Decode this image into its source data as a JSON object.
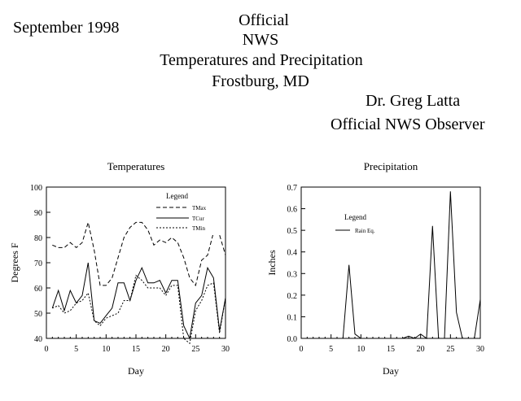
{
  "header": {
    "date": "September 1998",
    "line1": "Official",
    "line2": "NWS",
    "line3": "Temperatures and Precipitation",
    "line4": "Frostburg, MD",
    "observer_name": "Dr. Greg Latta",
    "observer_title": "Official NWS Observer"
  },
  "chart_data": [
    {
      "type": "line",
      "title": "Temperatures",
      "xlabel": "Day",
      "ylabel": "Degrees F",
      "xlim": [
        0,
        30
      ],
      "ylim": [
        40,
        100
      ],
      "xticks": [
        0,
        5,
        10,
        15,
        20,
        25,
        30
      ],
      "yticks": [
        40,
        50,
        60,
        70,
        80,
        90,
        100
      ],
      "legend_title": "Legend",
      "legend_position": "top-right",
      "grid": false,
      "x": [
        1,
        2,
        3,
        4,
        5,
        6,
        7,
        8,
        9,
        10,
        11,
        12,
        13,
        14,
        15,
        16,
        17,
        18,
        19,
        20,
        21,
        22,
        23,
        24,
        25,
        26,
        27,
        28,
        29,
        30
      ],
      "series": [
        {
          "name": "TMax",
          "dash": "dashed",
          "values": [
            77,
            76,
            76,
            78,
            76,
            78,
            86,
            75,
            61,
            61,
            64,
            72,
            80,
            84,
            86,
            86,
            83,
            77,
            79,
            78,
            80,
            78,
            72,
            64,
            61,
            71,
            73,
            82,
            81,
            73
          ]
        },
        {
          "name": "TCur",
          "dash": "solid",
          "values": [
            52,
            59,
            51,
            59,
            54,
            57,
            70,
            47,
            46,
            49,
            52,
            62,
            62,
            55,
            63,
            68,
            62,
            62,
            63,
            58,
            63,
            63,
            45,
            40,
            54,
            57,
            68,
            64,
            43,
            56
          ]
        },
        {
          "name": "TMin",
          "dash": "dotted",
          "values": [
            52,
            53,
            50,
            51,
            54,
            55,
            58,
            47,
            45,
            48,
            49,
            50,
            55,
            55,
            65,
            63,
            60,
            60,
            60,
            57,
            61,
            61,
            40,
            38,
            51,
            55,
            61,
            62,
            42,
            56
          ]
        }
      ]
    },
    {
      "type": "line",
      "title": "Precipitation",
      "xlabel": "Day",
      "ylabel": "Inches",
      "xlim": [
        0,
        30
      ],
      "ylim": [
        0,
        0.7
      ],
      "xticks": [
        0,
        5,
        10,
        15,
        20,
        25,
        30
      ],
      "yticks": [
        "0.0",
        "0.1",
        "0.2",
        "0.3",
        "0.4",
        "0.5",
        "0.6",
        "0.7"
      ],
      "legend_title": "Legend",
      "legend_position": "top-left",
      "grid": false,
      "x": [
        1,
        2,
        3,
        4,
        5,
        6,
        7,
        8,
        9,
        10,
        11,
        12,
        13,
        14,
        15,
        16,
        17,
        18,
        19,
        20,
        21,
        22,
        23,
        24,
        25,
        26,
        27,
        28,
        29,
        30
      ],
      "series": [
        {
          "name": "Rain Eq.",
          "dash": "solid",
          "values": [
            0,
            0,
            0,
            0,
            0,
            0,
            0,
            0.34,
            0.02,
            0,
            0,
            0,
            0,
            0,
            0,
            0,
            0,
            0.01,
            0,
            0.02,
            0,
            0.52,
            0,
            0,
            0.68,
            0.12,
            0,
            0,
            0,
            0.18
          ]
        }
      ]
    }
  ]
}
